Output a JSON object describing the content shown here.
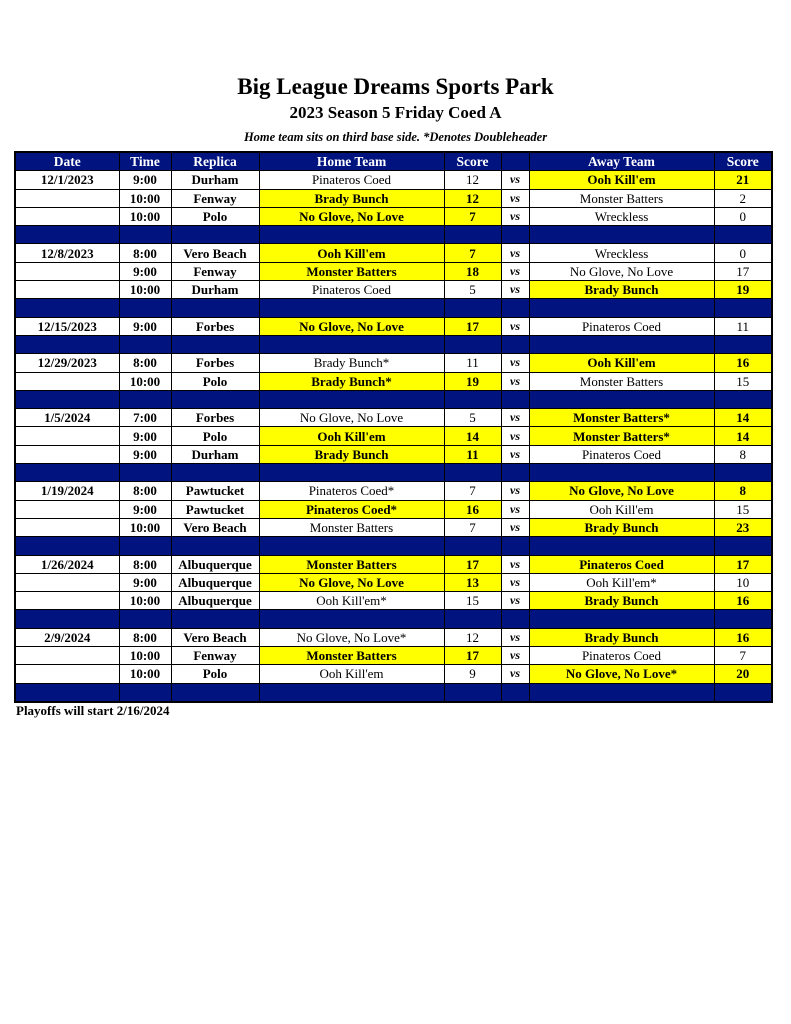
{
  "header": {
    "title": "Big League Dreams Sports Park",
    "subtitle": "2023 Season 5 Friday Coed A",
    "note": "Home team sits on third base side.  *Denotes Doubleheader"
  },
  "columns": [
    "Date",
    "Time",
    "Replica",
    "Home Team",
    "Score",
    "",
    "Away Team",
    "Score"
  ],
  "vs_label": "vs",
  "highlight_color": "#ffff00",
  "header_color": "#00137f",
  "groups": [
    {
      "date": "12/1/2023",
      "games": [
        {
          "time": "9:00",
          "replica": "Durham",
          "home": "Pinateros Coed",
          "home_score": "12",
          "away": "Ooh Kill'em",
          "away_score": "21",
          "winner": "away"
        },
        {
          "time": "10:00",
          "replica": "Fenway",
          "home": "Brady Bunch",
          "home_score": "12",
          "away": "Monster Batters",
          "away_score": "2",
          "winner": "home"
        },
        {
          "time": "10:00",
          "replica": "Polo",
          "home": "No Glove, No Love",
          "home_score": "7",
          "away": "Wreckless",
          "away_score": "0",
          "winner": "home"
        }
      ]
    },
    {
      "date": "12/8/2023",
      "games": [
        {
          "time": "8:00",
          "replica": "Vero Beach",
          "home": "Ooh Kill'em",
          "home_score": "7",
          "away": "Wreckless",
          "away_score": "0",
          "winner": "home"
        },
        {
          "time": "9:00",
          "replica": "Fenway",
          "home": "Monster Batters",
          "home_score": "18",
          "away": "No Glove, No Love",
          "away_score": "17",
          "winner": "home"
        },
        {
          "time": "10:00",
          "replica": "Durham",
          "home": "Pinateros Coed",
          "home_score": "5",
          "away": "Brady Bunch",
          "away_score": "19",
          "winner": "away"
        }
      ]
    },
    {
      "date": "12/15/2023",
      "games": [
        {
          "time": "9:00",
          "replica": "Forbes",
          "home": "No Glove, No Love",
          "home_score": "17",
          "away": "Pinateros Coed",
          "away_score": "11",
          "winner": "home"
        }
      ]
    },
    {
      "date": "12/29/2023",
      "games": [
        {
          "time": "8:00",
          "replica": "Forbes",
          "home": "Brady Bunch*",
          "home_score": "11",
          "away": "Ooh Kill'em",
          "away_score": "16",
          "winner": "away"
        },
        {
          "time": "10:00",
          "replica": "Polo",
          "home": "Brady Bunch*",
          "home_score": "19",
          "away": "Monster Batters",
          "away_score": "15",
          "winner": "home"
        }
      ]
    },
    {
      "date": "1/5/2024",
      "games": [
        {
          "time": "7:00",
          "replica": "Forbes",
          "home": "No Glove, No Love",
          "home_score": "5",
          "away": "Monster Batters*",
          "away_score": "14",
          "winner": "away"
        },
        {
          "time": "9:00",
          "replica": "Polo",
          "home": "Ooh Kill'em",
          "home_score": "14",
          "away": "Monster Batters*",
          "away_score": "14",
          "winner": "both"
        },
        {
          "time": "9:00",
          "replica": "Durham",
          "home": "Brady Bunch",
          "home_score": "11",
          "away": "Pinateros Coed",
          "away_score": "8",
          "winner": "home"
        }
      ]
    },
    {
      "date": "1/19/2024",
      "games": [
        {
          "time": "8:00",
          "replica": "Pawtucket",
          "home": "Pinateros Coed*",
          "home_score": "7",
          "away": "No Glove, No Love",
          "away_score": "8",
          "winner": "away"
        },
        {
          "time": "9:00",
          "replica": "Pawtucket",
          "home": "Pinateros Coed*",
          "home_score": "16",
          "away": "Ooh Kill'em",
          "away_score": "15",
          "winner": "home"
        },
        {
          "time": "10:00",
          "replica": "Vero Beach",
          "home": "Monster Batters",
          "home_score": "7",
          "away": "Brady Bunch",
          "away_score": "23",
          "winner": "away"
        }
      ]
    },
    {
      "date": "1/26/2024",
      "games": [
        {
          "time": "8:00",
          "replica": "Albuquerque",
          "home": "Monster Batters",
          "home_score": "17",
          "away": "Pinateros Coed",
          "away_score": "17",
          "winner": "both"
        },
        {
          "time": "9:00",
          "replica": "Albuquerque",
          "home": "No Glove, No Love",
          "home_score": "13",
          "away": "Ooh Kill'em*",
          "away_score": "10",
          "winner": "home"
        },
        {
          "time": "10:00",
          "replica": "Albuquerque",
          "home": "Ooh Kill'em*",
          "home_score": "15",
          "away": "Brady Bunch",
          "away_score": "16",
          "winner": "away"
        }
      ]
    },
    {
      "date": "2/9/2024",
      "games": [
        {
          "time": "8:00",
          "replica": "Vero Beach",
          "home": "No Glove, No Love*",
          "home_score": "12",
          "away": "Brady Bunch",
          "away_score": "16",
          "winner": "away"
        },
        {
          "time": "10:00",
          "replica": "Fenway",
          "home": "Monster Batters",
          "home_score": "17",
          "away": "Pinateros Coed",
          "away_score": "7",
          "winner": "home"
        },
        {
          "time": "10:00",
          "replica": "Polo",
          "home": "Ooh Kill'em",
          "home_score": "9",
          "away": "No Glove, No Love*",
          "away_score": "20",
          "winner": "away"
        }
      ]
    }
  ],
  "footer": "Playoffs will start 2/16/2024"
}
